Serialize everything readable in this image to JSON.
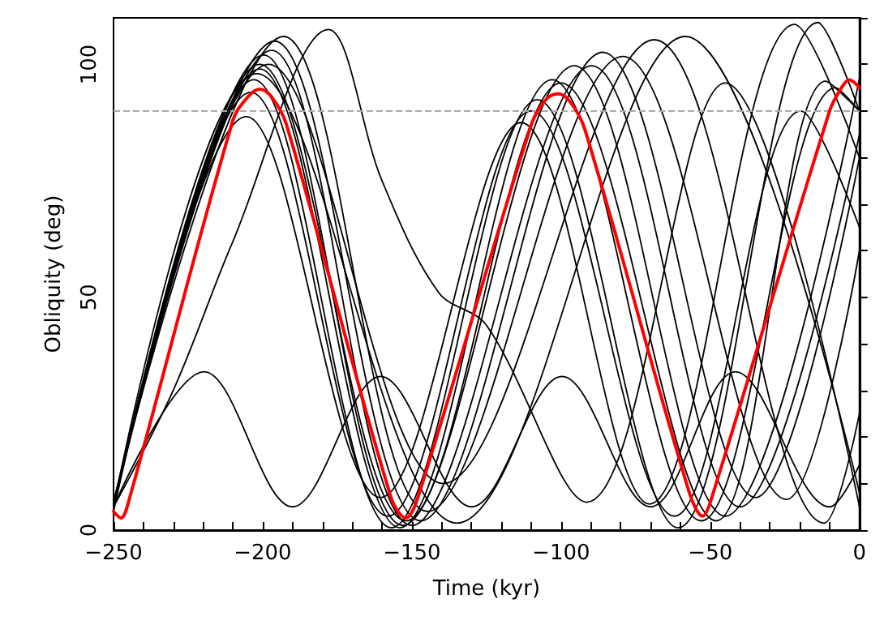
{
  "chart_data": {
    "type": "line",
    "xlabel": "Time (kyr)",
    "ylabel": "Obliquity (deg)",
    "xlim": [
      -250,
      0
    ],
    "ylim": [
      0,
      110
    ],
    "xticks": [
      -250,
      {
        "value": -240,
        "label": null
      },
      {
        "value": -230,
        "label": null
      },
      {
        "value": -220,
        "label": null
      },
      {
        "value": -210,
        "label": null
      },
      -200,
      {
        "value": -190,
        "label": null
      },
      {
        "value": -180,
        "label": null
      },
      {
        "value": -170,
        "label": null
      },
      {
        "value": -160,
        "label": null
      },
      -150,
      {
        "value": -140,
        "label": null
      },
      {
        "value": -130,
        "label": null
      },
      {
        "value": -120,
        "label": null
      },
      {
        "value": -110,
        "label": null
      },
      -100,
      {
        "value": -90,
        "label": null
      },
      {
        "value": -80,
        "label": null
      },
      {
        "value": -70,
        "label": null
      },
      {
        "value": -60,
        "label": null
      },
      -50,
      {
        "value": -40,
        "label": null
      },
      {
        "value": -30,
        "label": null
      },
      {
        "value": -20,
        "label": null
      },
      {
        "value": -10,
        "label": null
      },
      0
    ],
    "yticks": [
      0,
      {
        "value": 10,
        "label": null
      },
      {
        "value": 20,
        "label": null
      },
      {
        "value": 30,
        "label": null
      },
      {
        "value": 40,
        "label": null
      },
      50,
      {
        "value": 60,
        "label": null
      },
      {
        "value": 70,
        "label": null
      },
      {
        "value": 80,
        "label": null
      },
      {
        "value": 90,
        "label": null
      },
      100,
      {
        "value": 110,
        "label": null
      }
    ],
    "grid": false,
    "marker": "none",
    "line_style": "solid",
    "ref_lines": [
      {
        "axis": "y",
        "value": 90,
        "color": "#aaaaaa",
        "line_style": "dashed"
      }
    ],
    "series": [
      {
        "color": "#000000",
        "x": [
          -250,
          -205.5,
          -160.5,
          -113.4,
          -70.4,
          -21.7,
          0
        ],
        "values": [
          5,
          88.8,
          7,
          87.5,
          5.6,
          108.6,
          80
        ]
      },
      {
        "color": "#000000",
        "x": [
          -250,
          -203,
          -156.8,
          -108,
          -60.8,
          -13.9,
          0
        ],
        "values": [
          4,
          96.7,
          0.5,
          92.4,
          0.5,
          109,
          90
        ]
      },
      {
        "color": "#000000",
        "x": [
          -250,
          -201,
          -154,
          -103,
          -53,
          -8,
          0
        ],
        "values": [
          5,
          99,
          0.5,
          96.7,
          2,
          95,
          90
        ]
      },
      {
        "color": "#000000",
        "x": [
          -250,
          -199.7,
          -153,
          -95.6,
          -45,
          0
        ],
        "values": [
          5,
          102,
          1,
          99.7,
          3,
          97
        ]
      },
      {
        "color": "#000000",
        "x": [
          -250,
          -197,
          -150,
          -89.7,
          -40,
          0
        ],
        "values": [
          5,
          103,
          1,
          99.7,
          5,
          85
        ]
      },
      {
        "color": "#000000",
        "x": [
          -250,
          -196,
          -147,
          -86,
          -34.8,
          0
        ],
        "values": [
          6,
          105,
          2,
          102.6,
          7,
          80
        ]
      },
      {
        "color": "#000000",
        "x": [
          -250,
          -193,
          -144.7,
          -79.3,
          -24.4,
          0
        ],
        "values": [
          6,
          106,
          4,
          101.7,
          6.6,
          60
        ]
      },
      {
        "color": "#000000",
        "x": [
          -250,
          -198,
          -139.5,
          -68.8,
          -11.8,
          0
        ],
        "values": [
          5,
          100,
          10,
          105.3,
          1.5,
          25
        ]
      },
      {
        "color": "#000000",
        "x": [
          -250,
          -202,
          -135,
          -58.4,
          0
        ],
        "values": [
          5,
          98,
          1.5,
          106,
          8
        ]
      },
      {
        "color": "#000000",
        "x": [
          -250,
          -201,
          -152,
          -100,
          -48,
          -11.3,
          0
        ],
        "values": [
          5,
          100,
          2,
          96,
          2,
          96.4,
          90
        ]
      },
      {
        "color": "#000000",
        "x": [
          -250,
          -204,
          -158,
          -110,
          -62,
          -19.6,
          0
        ],
        "values": [
          5,
          94,
          3,
          90,
          3,
          90,
          65
        ]
      },
      {
        "color": "#000000",
        "x": [
          -250,
          -230,
          -210,
          -178,
          -160,
          -141,
          -125,
          -91.4,
          -45,
          0
        ],
        "values": [
          5,
          30,
          62,
          107.5,
          75,
          51,
          44,
          6,
          96,
          5
        ]
      },
      {
        "color": "#000000",
        "x": [
          -250,
          -219.6,
          -190,
          -160.5,
          -130,
          -99.7,
          -70,
          -41.6,
          -10,
          0
        ],
        "values": [
          5,
          34,
          5,
          33,
          5,
          33,
          5,
          34,
          5,
          14
        ]
      },
      {
        "color": "#ff0000",
        "x": [
          -250,
          -247.5,
          -245,
          -210,
          -205,
          -201,
          -197,
          -192,
          -157,
          -152,
          -148,
          -110,
          -105,
          -101,
          -97,
          -92,
          -57,
          -52.6,
          -49,
          -10,
          -6,
          -3.4,
          0
        ],
        "values": [
          4,
          2.6,
          6,
          88,
          93,
          94.7,
          93,
          87,
          7,
          2.6,
          7,
          87,
          92.5,
          93.7,
          92,
          86,
          8,
          3,
          8,
          90,
          95,
          96.7,
          95
        ]
      }
    ]
  }
}
